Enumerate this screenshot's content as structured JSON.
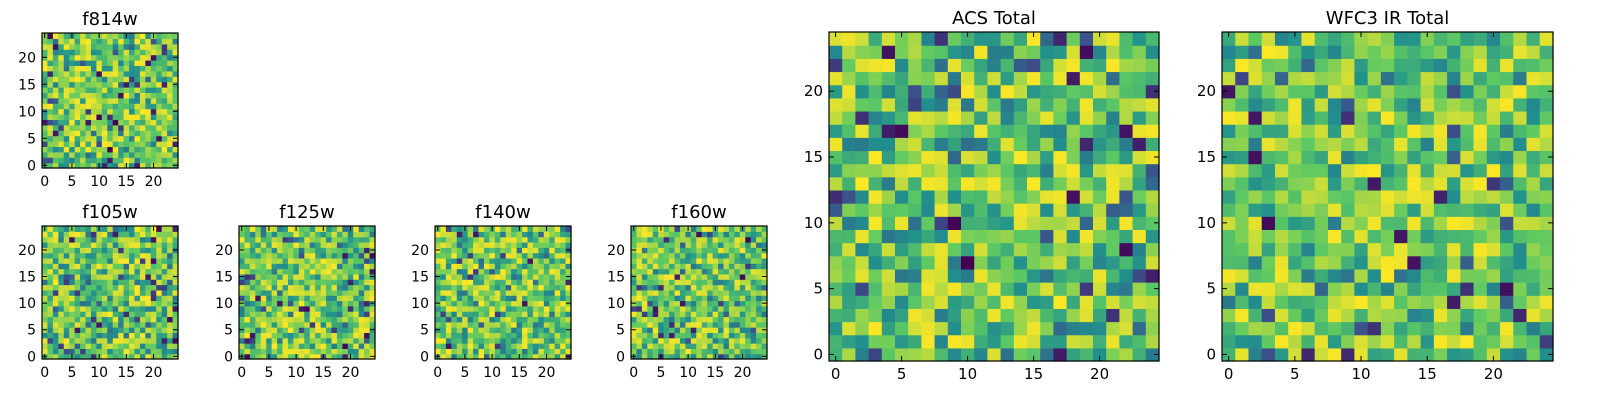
{
  "chart_data": [
    {
      "type": "heatmap",
      "title": "f814w",
      "grid_size": 25,
      "xticks": [
        "0",
        "5",
        "10",
        "15",
        "20"
      ],
      "yticks": [
        "0",
        "5",
        "10",
        "15",
        "20"
      ],
      "seed": 11
    },
    {
      "type": "heatmap",
      "title": "f105w",
      "grid_size": 25,
      "xticks": [
        "0",
        "5",
        "10",
        "15",
        "20"
      ],
      "yticks": [
        "0",
        "5",
        "10",
        "15",
        "20"
      ],
      "seed": 23
    },
    {
      "type": "heatmap",
      "title": "f125w",
      "grid_size": 25,
      "xticks": [
        "0",
        "5",
        "10",
        "15",
        "20"
      ],
      "yticks": [
        "0",
        "5",
        "10",
        "15",
        "20"
      ],
      "seed": 37
    },
    {
      "type": "heatmap",
      "title": "f140w",
      "grid_size": 25,
      "xticks": [
        "0",
        "5",
        "10",
        "15",
        "20"
      ],
      "yticks": [
        "0",
        "5",
        "10",
        "15",
        "20"
      ],
      "seed": 41
    },
    {
      "type": "heatmap",
      "title": "f160w",
      "grid_size": 25,
      "xticks": [
        "0",
        "5",
        "10",
        "15",
        "20"
      ],
      "yticks": [
        "0",
        "5",
        "10",
        "15",
        "20"
      ],
      "seed": 53
    },
    {
      "type": "heatmap",
      "title": "ACS Total",
      "grid_size": 25,
      "xticks": [
        "0",
        "5",
        "10",
        "15",
        "20"
      ],
      "yticks": [
        "0",
        "5",
        "10",
        "15",
        "20"
      ],
      "seed": 67
    },
    {
      "type": "heatmap",
      "title": "WFC3 IR Total",
      "grid_size": 25,
      "xticks": [
        "0",
        "5",
        "10",
        "15",
        "20"
      ],
      "yticks": [
        "0",
        "5",
        "10",
        "15",
        "20"
      ],
      "seed": 79
    }
  ],
  "colormap": "viridis",
  "colormap_stops": [
    "#440154",
    "#3b528b",
    "#21908d",
    "#5dc963",
    "#fde725"
  ]
}
